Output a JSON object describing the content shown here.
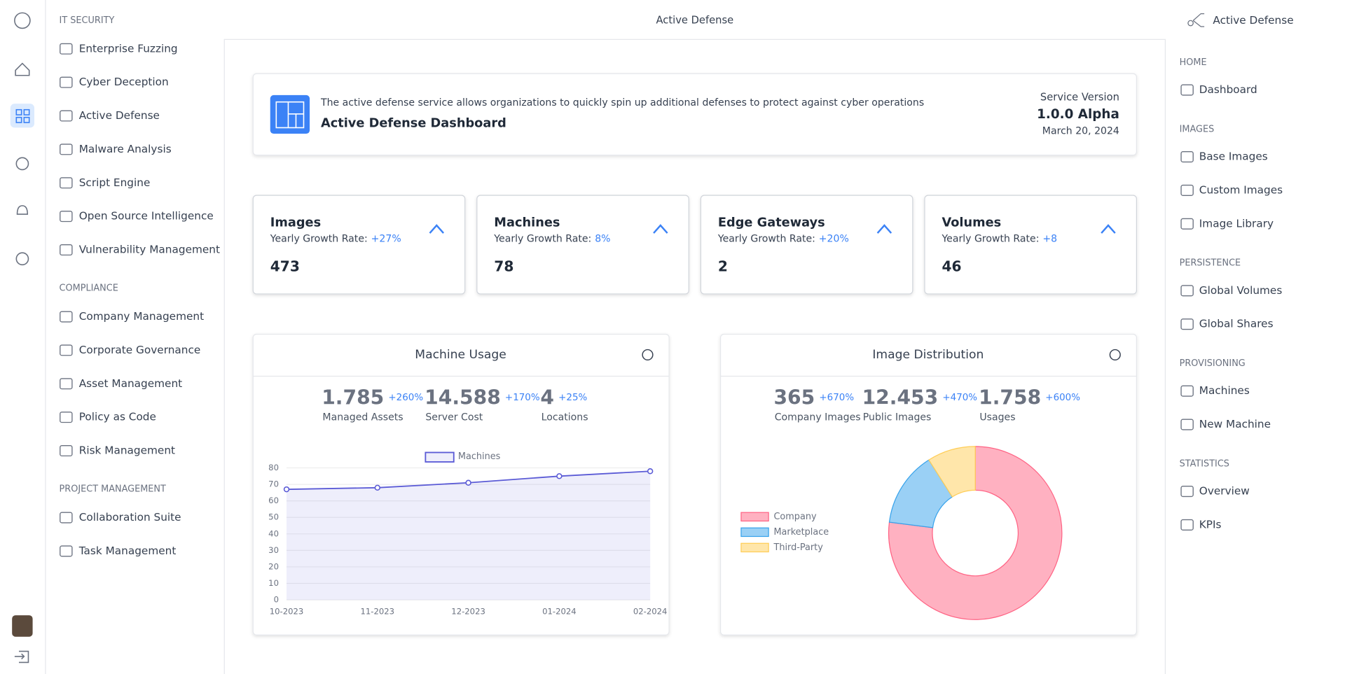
{
  "header": {
    "title": "Active Defense"
  },
  "left_nav": {
    "sections": [
      {
        "title": "IT SECURITY",
        "items": [
          "Enterprise Fuzzing",
          "Cyber Deception",
          "Active Defense",
          "Malware Analysis",
          "Script Engine",
          "Open Source Intelligence",
          "Vulnerability Management"
        ]
      },
      {
        "title": "COMPLIANCE",
        "items": [
          "Company Management",
          "Corporate Governance",
          "Asset Management",
          "Policy as Code",
          "Risk Management"
        ]
      },
      {
        "title": "PROJECT MANAGEMENT",
        "items": [
          "Collaboration Suite",
          "Task Management"
        ]
      }
    ]
  },
  "right_nav": {
    "title": "Active Defense",
    "sections": [
      {
        "title": "HOME",
        "items": [
          "Dashboard"
        ]
      },
      {
        "title": "IMAGES",
        "items": [
          "Base Images",
          "Custom Images",
          "Image Library"
        ]
      },
      {
        "title": "PERSISTENCE",
        "items": [
          "Global Volumes",
          "Global Shares"
        ]
      },
      {
        "title": "PROVISIONING",
        "items": [
          "Machines",
          "New Machine"
        ]
      },
      {
        "title": "STATISTICS",
        "items": [
          "Overview",
          "KPIs"
        ]
      }
    ]
  },
  "banner": {
    "description": "The active defense service allows organizations to quickly spin up additional defenses to protect against cyber operations",
    "title": "Active Defense Dashboard",
    "version_label": "Service Version",
    "version": "1.0.0 Alpha",
    "date": "March 20, 2024"
  },
  "stats": [
    {
      "title": "Images",
      "growth_label": "Yearly Growth Rate:",
      "growth": "+27%",
      "value": 473
    },
    {
      "title": "Machines",
      "growth_label": "Yearly Growth Rate:",
      "growth": "8%",
      "value": 78
    },
    {
      "title": "Edge Gateways",
      "growth_label": "Yearly Growth Rate:",
      "growth": "+20%",
      "value": 2
    },
    {
      "title": "Volumes",
      "growth_label": "Yearly Growth Rate:",
      "growth": "+8",
      "value": 46
    }
  ],
  "machine_usage": {
    "title": "Machine Usage",
    "kpis": [
      {
        "value": "1.785",
        "change": "+260%",
        "label": "Managed Assets"
      },
      {
        "value": "14.588",
        "change": "+170%",
        "label": "Server Cost"
      },
      {
        "value": "4",
        "change": "+25%",
        "label": "Locations"
      }
    ],
    "chart_data": {
      "type": "line",
      "categories": [
        "10-2023",
        "11-2023",
        "12-2023",
        "01-2024",
        "02-2024"
      ],
      "series": [
        {
          "name": "Machines",
          "color": "#5b5bd6",
          "values": [
            67,
            68,
            71,
            75,
            78
          ]
        }
      ],
      "ylim": [
        0,
        80
      ],
      "yticks": [
        0,
        10,
        20,
        30,
        40,
        50,
        60,
        70,
        80
      ],
      "grid": true,
      "legend": "top"
    }
  },
  "image_distribution": {
    "title": "Image Distribution",
    "kpis": [
      {
        "value": "365",
        "change": "+670%",
        "label": "Company Images"
      },
      {
        "value": "12.453",
        "change": "+470%",
        "label": "Public Images"
      },
      {
        "value": "1.758",
        "change": "+600%",
        "label": "Usages"
      }
    ],
    "chart_data": {
      "type": "doughnut",
      "categories": [
        "Company",
        "Marketplace",
        "Third-Party"
      ],
      "values": [
        77,
        14,
        9
      ],
      "colors": [
        "#ffb1c1",
        "#9ad0f5",
        "#ffe6aa"
      ],
      "legend": "left"
    }
  }
}
